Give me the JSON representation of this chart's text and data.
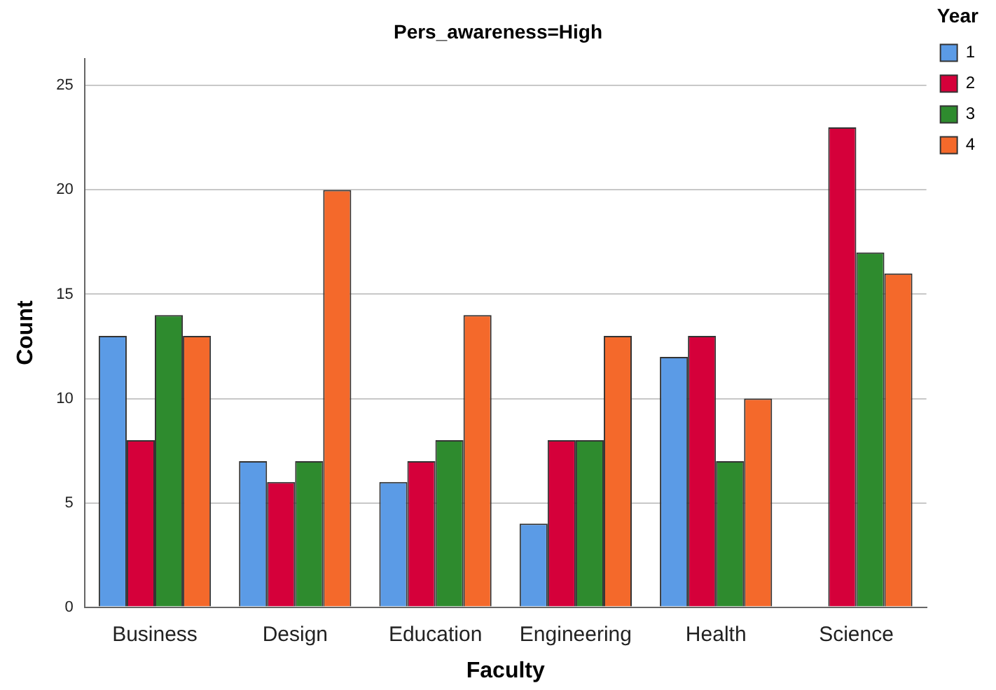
{
  "chart_data": {
    "type": "bar",
    "title": "Pers_awareness=High",
    "xlabel": "Faculty",
    "ylabel": "Count",
    "legend_title": "Year",
    "categories": [
      "Business",
      "Design",
      "Education",
      "Engineering",
      "Health",
      "Science"
    ],
    "series": [
      {
        "name": "1",
        "color": "#5b9be6",
        "values": [
          13,
          7,
          6,
          4,
          12,
          null
        ]
      },
      {
        "name": "2",
        "color": "#d5003a",
        "values": [
          8,
          6,
          7,
          8,
          13,
          23
        ]
      },
      {
        "name": "3",
        "color": "#2e8b2e",
        "values": [
          14,
          7,
          8,
          8,
          7,
          17
        ]
      },
      {
        "name": "4",
        "color": "#f4692b",
        "values": [
          13,
          20,
          14,
          13,
          10,
          16
        ]
      }
    ],
    "ylim": [
      0,
      26.3
    ],
    "yticks": [
      0,
      5,
      10,
      15,
      20,
      25
    ],
    "grid": "y",
    "legend": "top right"
  }
}
